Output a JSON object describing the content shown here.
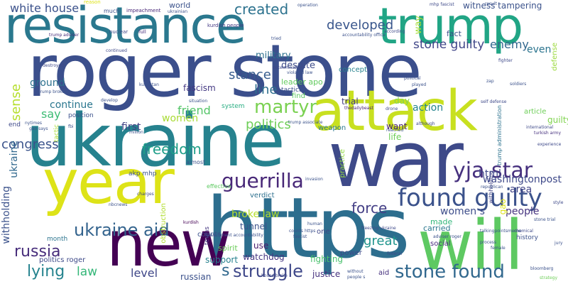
{
  "words": [
    {
      "text": "roger stone",
      "color": "#3b4f8c"
    },
    {
      "text": "resistance",
      "color": "#2a788e"
    },
    {
      "text": "ukraine",
      "color": "#26828e"
    },
    {
      "text": "war",
      "color": "#3e4a89"
    },
    {
      "text": "https",
      "color": "#2d6e8e"
    },
    {
      "text": "year",
      "color": "#dde318"
    },
    {
      "text": "attack",
      "color": "#c8e020"
    },
    {
      "text": "trump",
      "color": "#21a585"
    },
    {
      "text": "will",
      "color": "#5ec962"
    },
    {
      "text": "new",
      "color": "#440154"
    },
    {
      "text": "found guilty",
      "color": "#3b528b"
    },
    {
      "text": "yja star",
      "color": "#46307e"
    },
    {
      "text": "stone found",
      "color": "#31688e"
    },
    {
      "text": "guerrilla",
      "color": "#482878"
    },
    {
      "text": "ukraine aid",
      "color": "#33638d"
    },
    {
      "text": "martyr",
      "color": "#7ad151"
    },
    {
      "text": "struggle",
      "color": "#3f4889"
    },
    {
      "text": "russia",
      "color": "#472d7b"
    },
    {
      "text": "lying",
      "color": "#25838e"
    },
    {
      "text": "freedom",
      "color": "#1f9e89"
    },
    {
      "text": "stone guilty",
      "color": "#404688"
    },
    {
      "text": "created",
      "color": "#2c728e"
    },
    {
      "text": "developed",
      "color": "#39568c"
    },
    {
      "text": "white house",
      "color": "#3b518b"
    },
    {
      "text": "congress",
      "color": "#3a538b"
    },
    {
      "text": "sense",
      "color": "#b5de2b"
    },
    {
      "text": "stance",
      "color": "#365c8d"
    },
    {
      "text": "force",
      "color": "#433e85"
    },
    {
      "text": "politics",
      "color": "#6ece58"
    },
    {
      "text": "great",
      "color": "#1f948c"
    },
    {
      "text": "law",
      "color": "#35b779"
    },
    {
      "text": "level",
      "color": "#3f4788"
    },
    {
      "text": "enemy",
      "color": "#31678e"
    },
    {
      "text": "line",
      "color": "#2e6e8e"
    },
    {
      "text": "friend",
      "color": "#54c568"
    },
    {
      "text": "action",
      "color": "#25848e"
    },
    {
      "text": "say",
      "color": "#3dbc74"
    },
    {
      "text": "continue",
      "color": "#2a768e"
    },
    {
      "text": "ground",
      "color": "#2c718e"
    },
    {
      "text": "people",
      "color": "#46337f"
    },
    {
      "text": "women s",
      "color": "#3d4d8a"
    },
    {
      "text": "area",
      "color": "#414487"
    },
    {
      "text": "html",
      "color": "#3e4989"
    },
    {
      "text": "military",
      "color": "#2d718e"
    },
    {
      "text": "despite",
      "color": "#3e4c8a"
    },
    {
      "text": "ukraine",
      "color": "#31688e"
    },
    {
      "text": "withholding",
      "color": "#3b528b"
    },
    {
      "text": "guilty",
      "color": "#7fd34e"
    },
    {
      "text": "washingtonpost",
      "color": "#3e4989"
    },
    {
      "text": "even",
      "color": "#2b748e"
    },
    {
      "text": "first",
      "color": "#424186"
    },
    {
      "text": "fascism",
      "color": "#443983"
    },
    {
      "text": "women",
      "color": "#a8db34"
    },
    {
      "text": "s",
      "color": "#31688e"
    },
    {
      "text": "broke law",
      "color": "#b5de2b"
    },
    {
      "text": "tunnel",
      "color": "#3b528b"
    },
    {
      "text": "fighting",
      "color": "#4ac16d"
    },
    {
      "text": "justice",
      "color": "#46307e"
    },
    {
      "text": "russian",
      "color": "#3b518b"
    },
    {
      "text": "support",
      "color": "#26818e"
    },
    {
      "text": "watchdog",
      "color": "#453581"
    },
    {
      "text": "use",
      "color": "#48186a"
    },
    {
      "text": "politics roger",
      "color": "#3e4a89"
    },
    {
      "text": "way",
      "color": "#a5db36"
    },
    {
      "text": "made",
      "color": "#32b67a"
    },
    {
      "text": "carried",
      "color": "#2a778e"
    },
    {
      "text": "trial",
      "color": "#443a83"
    },
    {
      "text": "day",
      "color": "#84d44b"
    },
    {
      "text": "life",
      "color": "#6ece58"
    },
    {
      "text": "want",
      "color": "#482173"
    },
    {
      "text": "weapon",
      "color": "#2a768e"
    },
    {
      "text": "witness tampering",
      "color": "#3b528b"
    },
    {
      "text": "fact",
      "color": "#3b518b"
    },
    {
      "text": "world",
      "color": "#3b528b"
    },
    {
      "text": "concept",
      "color": "#26828e"
    },
    {
      "text": "leader apo",
      "color": "#63cb5f"
    },
    {
      "text": "article",
      "color": "#6ece58"
    },
    {
      "text": "spirit",
      "color": "#6ccd5a"
    },
    {
      "text": "counts",
      "color": "#3b518b"
    },
    {
      "text": "verdict",
      "color": "#2d708e"
    },
    {
      "text": "find",
      "color": "#5ec962"
    },
    {
      "text": "power",
      "color": "#3e4a89"
    },
    {
      "text": "one",
      "color": "#3f4788"
    },
    {
      "text": "social",
      "color": "#472d7b"
    },
    {
      "text": "month",
      "color": "#2b748e"
    },
    {
      "text": "end",
      "color": "#3e4989"
    },
    {
      "text": "akp mhp",
      "color": "#3b528b"
    },
    {
      "text": "position",
      "color": "#3b518b"
    },
    {
      "text": "system",
      "color": "#27ad81"
    },
    {
      "text": "practice",
      "color": "#90d743"
    },
    {
      "text": "obstruction",
      "color": "#b0dd2f"
    },
    {
      "text": "almost",
      "color": "#3b528b"
    },
    {
      "text": "effective",
      "color": "#5ec962"
    },
    {
      "text": "terms",
      "color": "#453882"
    },
    {
      "text": "gao",
      "color": "#dde318"
    },
    {
      "text": "tactic",
      "color": "#a8db34"
    },
    {
      "text": "defense",
      "color": "#9bd93c"
    },
    {
      "text": "history",
      "color": "#3b518b"
    },
    {
      "text": "kurdish people",
      "color": "#443983"
    },
    {
      "text": "impeachment",
      "color": "#482677"
    },
    {
      "text": "much",
      "color": "#3b518b"
    },
    {
      "text": "nuclear",
      "color": "#3e4989"
    },
    {
      "text": "full",
      "color": "#46307e"
    },
    {
      "text": "trump adviser",
      "color": "#472c7a"
    },
    {
      "text": "accountability office",
      "color": "#3b518b"
    },
    {
      "text": "trump administration",
      "color": "#2c728e"
    },
    {
      "text": "international",
      "color": "#3e4989"
    },
    {
      "text": "turkish army",
      "color": "#46307e"
    },
    {
      "text": "withholding",
      "color": "#414487"
    },
    {
      "text": "trump associate",
      "color": "#3b528b"
    },
    {
      "text": "thedailybeast",
      "color": "#482173"
    },
    {
      "text": "nbcnews",
      "color": "#3b518b"
    },
    {
      "text": "kurdish",
      "color": "#440154"
    },
    {
      "text": "human",
      "color": "#3b528b"
    },
    {
      "text": "counts https",
      "color": "#3b518b"
    },
    {
      "text": "fascist",
      "color": "#3b528b"
    },
    {
      "text": "house broke",
      "color": "#3e4989"
    },
    {
      "text": "without",
      "color": "#3b518b"
    },
    {
      "text": "people s",
      "color": "#3b528b"
    },
    {
      "text": "aid",
      "color": "#46307e"
    },
    {
      "text": "federal",
      "color": "#3e4989"
    },
    {
      "text": "adviser roger",
      "color": "#3b518b"
    },
    {
      "text": "talkingpointsmemo",
      "color": "#3b528b"
    },
    {
      "text": "bloomberg",
      "color": "#3b518b"
    },
    {
      "text": "chemical",
      "color": "#3e4989"
    },
    {
      "text": "stone trial",
      "color": "#3b528b"
    },
    {
      "text": "jury",
      "color": "#3b518b"
    },
    {
      "text": "style",
      "color": "#3e4989"
    },
    {
      "text": "strategy",
      "color": "#6ece58"
    },
    {
      "text": "fbi",
      "color": "#3b518b"
    },
    {
      "text": "invasion",
      "color": "#3b528b"
    },
    {
      "text": "freezing ukraine",
      "color": "#3e4989"
    },
    {
      "text": "government accountability",
      "color": "#3b518b"
    },
    {
      "text": "situation",
      "color": "#3b528b"
    },
    {
      "text": "self defense",
      "color": "#3e4989"
    },
    {
      "text": "political",
      "color": "#3b518b"
    },
    {
      "text": "played",
      "color": "#3b528b"
    },
    {
      "text": "drone",
      "color": "#3e4989"
    },
    {
      "text": "soldiers",
      "color": "#3b518b"
    },
    {
      "text": "violated law",
      "color": "#3b528b"
    },
    {
      "text": "determination",
      "color": "#3e4989"
    },
    {
      "text": "kurdistan",
      "color": "#3b518b"
    },
    {
      "text": "zap",
      "color": "#3b528b"
    },
    {
      "text": "fighter",
      "color": "#3e4989"
    },
    {
      "text": "tactical",
      "color": "#3b518b"
    },
    {
      "text": "trump broke",
      "color": "#3b528b"
    },
    {
      "text": "destroyed",
      "color": "#3e4989"
    },
    {
      "text": "nytimes",
      "color": "#3b518b"
    },
    {
      "text": "gao says",
      "color": "#3b528b"
    },
    {
      "text": "continued",
      "color": "#3e4989"
    },
    {
      "text": "reason",
      "color": "#dde318"
    },
    {
      "text": "ukrainian",
      "color": "#3b518b"
    },
    {
      "text": "operation",
      "color": "#3b528b"
    },
    {
      "text": "mhp fascist",
      "color": "#3e4989"
    },
    {
      "text": "result",
      "color": "#3b518b"
    },
    {
      "text": "tried",
      "color": "#3b528b"
    },
    {
      "text": "according",
      "color": "#3e4989"
    },
    {
      "text": "develop",
      "color": "#3b518b"
    },
    {
      "text": "million",
      "color": "#3b528b"
    },
    {
      "text": "charges",
      "color": "#3e4989"
    },
    {
      "text": "process",
      "color": "#3b518b"
    },
    {
      "text": "female",
      "color": "#3b528b"
    },
    {
      "text": "experience",
      "color": "#3e4989"
    },
    {
      "text": "republican",
      "color": "#3b518b"
    },
    {
      "text": "reached",
      "color": "#3b528b"
    },
    {
      "text": "although",
      "color": "#3e4989"
    }
  ]
}
